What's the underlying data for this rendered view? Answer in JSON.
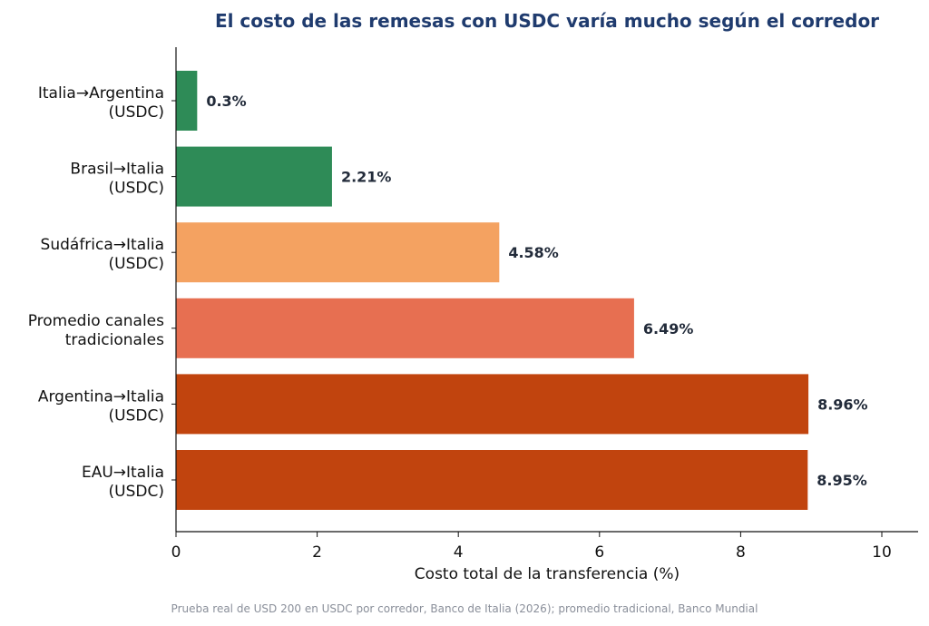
{
  "chart_data": {
    "type": "bar",
    "orientation": "horizontal",
    "title": "El costo de las remesas con USDC varía mucho según el corredor",
    "xlabel": "Costo total de la transferencia (%)",
    "ylabel": "",
    "xlim": [
      0,
      10
    ],
    "xticks": [
      0,
      2,
      4,
      6,
      8,
      10
    ],
    "grid": false,
    "categories": [
      [
        "Italia→Argentina",
        "(USDC)"
      ],
      [
        "Brasil→Italia",
        "(USDC)"
      ],
      [
        "Sudáfrica→Italia",
        "(USDC)"
      ],
      [
        "Promedio canales",
        "tradicionales"
      ],
      [
        "Argentina→Italia",
        "(USDC)"
      ],
      [
        "EAU→Italia",
        "(USDC)"
      ]
    ],
    "values": [
      0.3,
      2.21,
      4.58,
      6.49,
      8.96,
      8.95
    ],
    "value_labels": [
      "0.3%",
      "2.21%",
      "4.58%",
      "6.49%",
      "8.96%",
      "8.95%"
    ],
    "colors": [
      "#2e8b57",
      "#2e8b57",
      "#f4a261",
      "#e76f51",
      "#c1440e",
      "#c1440e"
    ],
    "source": "Prueba real de USD 200 en USDC por corredor, Banco de Italia (2026); promedio tradicional, Banco Mundial"
  }
}
